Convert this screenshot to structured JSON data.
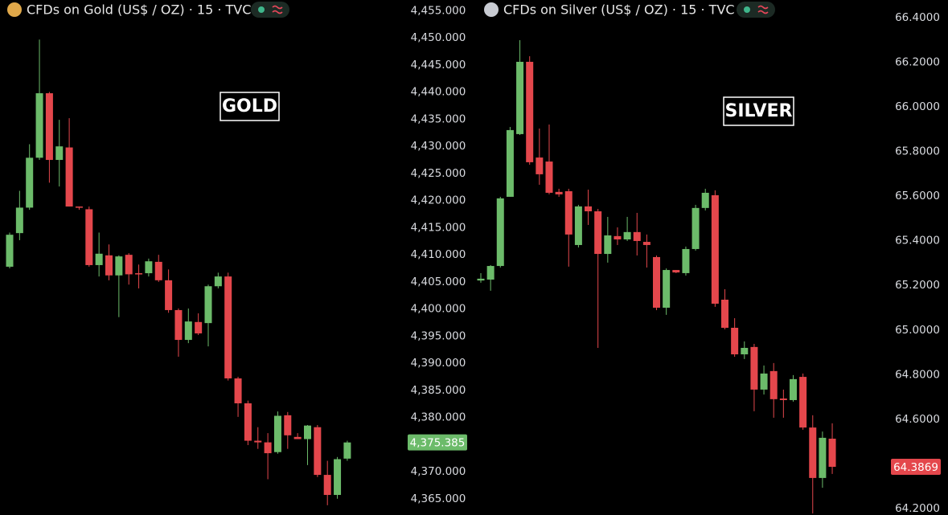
{
  "chart_data": [
    {
      "type": "candlestick",
      "title": "CFDs on Gold (US$ / OZ) · 15 · TVC",
      "annotation": "GOLD",
      "up_color": "#6cbb6a",
      "down_color": "#e4474c",
      "open": [
        4407.8,
        4414.0,
        4418.7,
        4427.9,
        4439.8,
        4427.5,
        4429.8,
        4418.9,
        4418.4,
        4408.1,
        4409.9,
        4406.2,
        4410.0,
        4406.6,
        4406.6,
        4408.7,
        4405.3,
        4399.8,
        4394.3,
        4397.6,
        4397.4,
        4404.2,
        4406.0,
        4387.2,
        4382.6,
        4375.7,
        4375.4,
        4373.6,
        4380.4,
        4376.4,
        4376.0,
        4378.2,
        4369.4,
        4365.7,
        4372.4
      ],
      "high": [
        4414.1,
        4421.8,
        4430.4,
        4449.7,
        4440.05,
        4434.9,
        4435.2,
        4418.9,
        4418.9,
        4414.1,
        4411.9,
        4409.9,
        4410.3,
        4408.2,
        4409.3,
        4410.0,
        4407.3,
        4400.1,
        4400.1,
        4399.2,
        4404.5,
        4406.7,
        4406.7,
        4387.5,
        4383.1,
        4378.2,
        4377.1,
        4381.1,
        4381.0,
        4377.1,
        4378.6,
        4378.6,
        4372.0,
        4372.7,
        4375.7
      ],
      "low": [
        4407.5,
        4412.7,
        4418.3,
        4427.5,
        4423.3,
        4422.6,
        4418.9,
        4418.3,
        4407.8,
        4406.0,
        4405.3,
        4398.5,
        4404.5,
        4403.8,
        4406.0,
        4405.0,
        4399.3,
        4391.2,
        4393.7,
        4395.2,
        4393.1,
        4403.8,
        4386.8,
        4380.1,
        4374.9,
        4374.2,
        4368.6,
        4373.3,
        4374.2,
        4376.0,
        4371.2,
        4369.0,
        4363.8,
        4365.0,
        4372.0
      ],
      "close": [
        4413.7,
        4418.7,
        4427.9,
        4439.8,
        4427.5,
        4430.0,
        4418.9,
        4418.7,
        4408.1,
        4410.2,
        4406.2,
        4409.7,
        4406.4,
        4406.4,
        4408.8,
        4405.3,
        4399.8,
        4394.3,
        4397.7,
        4395.5,
        4404.2,
        4406.0,
        4387.2,
        4382.6,
        4375.7,
        4375.4,
        4373.4,
        4380.3,
        4376.7,
        4376.0,
        4378.5,
        4369.4,
        4365.7,
        4372.3,
        4375.385
      ],
      "last_price": {
        "value": 4375.385,
        "label": "4,375.385"
      },
      "ylim": [
        4362,
        4457
      ],
      "yticks": [
        {
          "value": 4365,
          "label": "4,365.000"
        },
        {
          "value": 4370,
          "label": "4,370.000"
        },
        {
          "value": 4375,
          "label": "4,375.000"
        },
        {
          "value": 4380,
          "label": "4,380.000"
        },
        {
          "value": 4385,
          "label": "4,385.000"
        },
        {
          "value": 4390,
          "label": "4,390.000"
        },
        {
          "value": 4395,
          "label": "4,395.000"
        },
        {
          "value": 4400,
          "label": "4,400.000"
        },
        {
          "value": 4405,
          "label": "4,405.000"
        },
        {
          "value": 4410,
          "label": "4,410.000"
        },
        {
          "value": 4415,
          "label": "4,415.000"
        },
        {
          "value": 4420,
          "label": "4,420.000"
        },
        {
          "value": 4425,
          "label": "4,425.000"
        },
        {
          "value": 4430,
          "label": "4,430.000"
        },
        {
          "value": 4435,
          "label": "4,435.000"
        },
        {
          "value": 4440,
          "label": "4,440.000"
        },
        {
          "value": 4445,
          "label": "4,445.000"
        },
        {
          "value": 4450,
          "label": "4,450.000"
        },
        {
          "value": 4455,
          "label": "4,455.000"
        }
      ]
    },
    {
      "type": "candlestick",
      "title": "CFDs on Silver (US$ / OZ) · 15 · TVC",
      "annotation": "SILVER",
      "up_color": "#6cbb6a",
      "down_color": "#e4474c",
      "open": [
        65.222,
        65.226,
        65.287,
        65.597,
        65.878,
        66.202,
        65.773,
        65.755,
        65.619,
        65.622,
        65.381,
        65.554,
        65.532,
        65.341,
        65.421,
        65.406,
        65.439,
        65.395,
        65.327,
        65.1,
        65.269,
        65.255,
        65.363,
        65.547,
        65.604,
        65.136,
        65.01,
        64.891,
        64.924,
        64.733,
        64.816,
        64.693,
        64.686,
        64.79,
        64.563,
        64.337,
        64.513
      ],
      "high": [
        65.255,
        65.291,
        65.597,
        65.91,
        66.299,
        66.227,
        65.903,
        65.921,
        65.633,
        65.633,
        65.561,
        65.629,
        65.543,
        65.507,
        65.46,
        65.507,
        65.525,
        65.428,
        65.334,
        65.276,
        65.269,
        65.374,
        65.561,
        65.633,
        65.626,
        65.183,
        65.053,
        64.949,
        64.938,
        64.841,
        64.852,
        64.733,
        64.798,
        64.805,
        64.618,
        64.545,
        64.582
      ],
      "low": [
        65.212,
        65.176,
        65.28,
        65.597,
        65.874,
        65.741,
        65.651,
        65.608,
        65.597,
        65.284,
        65.37,
        65.471,
        64.92,
        65.302,
        65.381,
        65.399,
        65.334,
        65.28,
        65.089,
        65.068,
        65.255,
        65.244,
        65.356,
        65.536,
        65.104,
        65.003,
        64.88,
        64.87,
        64.636,
        64.711,
        64.607,
        64.607,
        64.679,
        64.553,
        64.178,
        64.293,
        64.355
      ],
      "close": [
        65.23,
        65.287,
        65.59,
        65.896,
        66.202,
        65.752,
        65.698,
        65.615,
        65.608,
        65.428,
        65.554,
        65.532,
        65.341,
        65.424,
        65.406,
        65.439,
        65.399,
        65.381,
        65.1,
        65.269,
        65.258,
        65.363,
        65.547,
        65.615,
        65.118,
        65.01,
        64.891,
        64.92,
        64.733,
        64.805,
        64.69,
        64.686,
        64.78,
        64.563,
        64.337,
        64.517,
        64.3869
      ],
      "last_price": 64.3869,
      "ylim": [
        64.171,
        66.479
      ],
      "yticks": [
        {
          "value": 64.2,
          "label": "64.2000"
        },
        {
          "value": 64.4,
          "label": "64.4000"
        },
        {
          "value": 64.6,
          "label": "64.6000"
        },
        {
          "value": 64.8,
          "label": "64.8000"
        },
        {
          "value": 65.0,
          "label": "65.0000"
        },
        {
          "value": 65.2,
          "label": "65.2000"
        },
        {
          "value": 65.4,
          "label": "65.4000"
        },
        {
          "value": 65.6,
          "label": "65.6000"
        },
        {
          "value": 65.8,
          "label": "65.8000"
        },
        {
          "value": 66.0,
          "label": "66.0000"
        },
        {
          "value": 66.2,
          "label": "66.2000"
        },
        {
          "value": 66.4,
          "label": "66.4000"
        }
      ]
    }
  ]
}
